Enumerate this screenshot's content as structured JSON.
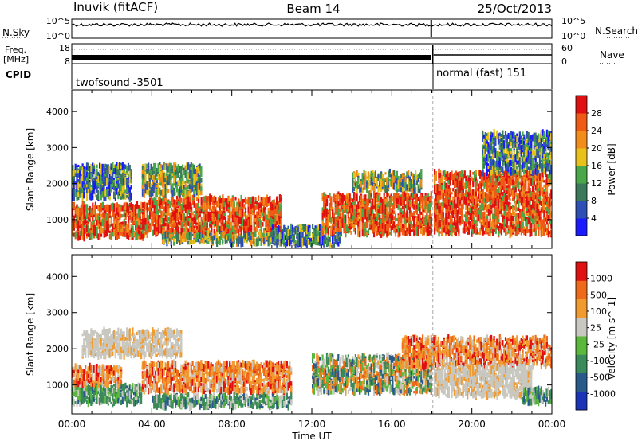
{
  "header": {
    "station": "Inuvik (fitACF)",
    "beam": "Beam 14",
    "date": "25/Oct/2013"
  },
  "top_panels": {
    "nsky_label": "N.Sky",
    "nsky_ticks": [
      "10^5",
      "10^0"
    ],
    "nsearch_label": "N.Search",
    "nsearch_ticks": [
      "10^5",
      "10^0"
    ],
    "freq_label_line1": "Freq.",
    "freq_label_line2": "[MHz]",
    "freq_ticks": [
      "18",
      "8"
    ],
    "nave_label": "Nave",
    "nave_ticks": [
      "60",
      "0"
    ],
    "cpid_label": "CPID",
    "mode_changes": [
      {
        "start_hour": 0,
        "label": "twofsound -3501"
      },
      {
        "start_hour": 18.05,
        "label": "normal (fast) 151"
      }
    ]
  },
  "chart_data": [
    {
      "type": "heatmap",
      "name": "power",
      "ylabel": "Slant Range [km]",
      "y_ticks": [
        1000,
        2000,
        3000,
        4000
      ],
      "ylim": [
        200,
        4600
      ],
      "colorbar": {
        "label": "Power [dB]",
        "ticks": [
          4,
          8,
          12,
          16,
          20,
          24,
          28
        ],
        "range": [
          0,
          32
        ],
        "colors": [
          "#1a1aff",
          "#2e4fb5",
          "#3a7a5a",
          "#4aa84a",
          "#e8c21a",
          "#f28c1a",
          "#ef5a14",
          "#e01010"
        ]
      },
      "scatter_bands": [
        {
          "t0": 0.0,
          "t1": 3.8,
          "r0": 500,
          "r1": 1400,
          "level": "high"
        },
        {
          "t0": 0.0,
          "t1": 3.0,
          "r0": 1600,
          "r1": 2500,
          "level": "low"
        },
        {
          "t0": 3.8,
          "t1": 10.5,
          "r0": 600,
          "r1": 1600,
          "level": "high"
        },
        {
          "t0": 3.5,
          "t1": 6.5,
          "r0": 1700,
          "r1": 2500,
          "level": "mid"
        },
        {
          "t0": 4.5,
          "t1": 11.0,
          "r0": 350,
          "r1": 600,
          "level": "mid"
        },
        {
          "t0": 10.0,
          "t1": 13.5,
          "r0": 300,
          "r1": 800,
          "level": "low"
        },
        {
          "t0": 12.5,
          "t1": 18.0,
          "r0": 600,
          "r1": 1700,
          "level": "high"
        },
        {
          "t0": 14.0,
          "t1": 17.5,
          "r0": 1800,
          "r1": 2300,
          "level": "mid"
        },
        {
          "t0": 18.1,
          "t1": 24.0,
          "r0": 600,
          "r1": 2300,
          "level": "high"
        },
        {
          "t0": 20.5,
          "t1": 24.0,
          "r0": 2300,
          "r1": 3400,
          "level": "low"
        }
      ]
    },
    {
      "type": "heatmap",
      "name": "velocity",
      "ylabel": "Slant Range [km]",
      "y_ticks": [
        1000,
        2000,
        3000,
        4000
      ],
      "ylim": [
        200,
        4600
      ],
      "colorbar": {
        "label": "Velocity  [m s^-1]",
        "ticks": [
          "1000",
          "500",
          "100",
          "25",
          "-25",
          "-100",
          "-500",
          "-1000"
        ],
        "colors": [
          "#1a33b8",
          "#2a5a8a",
          "#3a8a5a",
          "#5ab83a",
          "#c8c8c0",
          "#f09a30",
          "#ef6a18",
          "#e01010"
        ]
      },
      "scatter_bands": [
        {
          "t0": 0.0,
          "t1": 3.5,
          "r0": 500,
          "r1": 1000,
          "kind": "green"
        },
        {
          "t0": 0.0,
          "t1": 2.5,
          "r0": 1000,
          "r1": 1500,
          "kind": "orange"
        },
        {
          "t0": 0.5,
          "t1": 5.5,
          "r0": 1800,
          "r1": 2500,
          "kind": "grey"
        },
        {
          "t0": 3.5,
          "t1": 11.0,
          "r0": 800,
          "r1": 1600,
          "kind": "orange"
        },
        {
          "t0": 4.0,
          "t1": 11.0,
          "r0": 400,
          "r1": 700,
          "kind": "green"
        },
        {
          "t0": 12.0,
          "t1": 18.0,
          "r0": 800,
          "r1": 1800,
          "kind": "mixed"
        },
        {
          "t0": 16.5,
          "t1": 24.0,
          "r0": 1500,
          "r1": 2300,
          "kind": "orange"
        },
        {
          "t0": 18.1,
          "t1": 23.0,
          "r0": 700,
          "r1": 1500,
          "kind": "grey"
        },
        {
          "t0": 22.5,
          "t1": 24.0,
          "r0": 500,
          "r1": 900,
          "kind": "green"
        }
      ]
    }
  ],
  "time_axis": {
    "label": "Time UT",
    "ticks": [
      "00:00",
      "04:00",
      "08:00",
      "12:00",
      "16:00",
      "20:00",
      "00:00"
    ],
    "range_hours": [
      0,
      24
    ]
  }
}
